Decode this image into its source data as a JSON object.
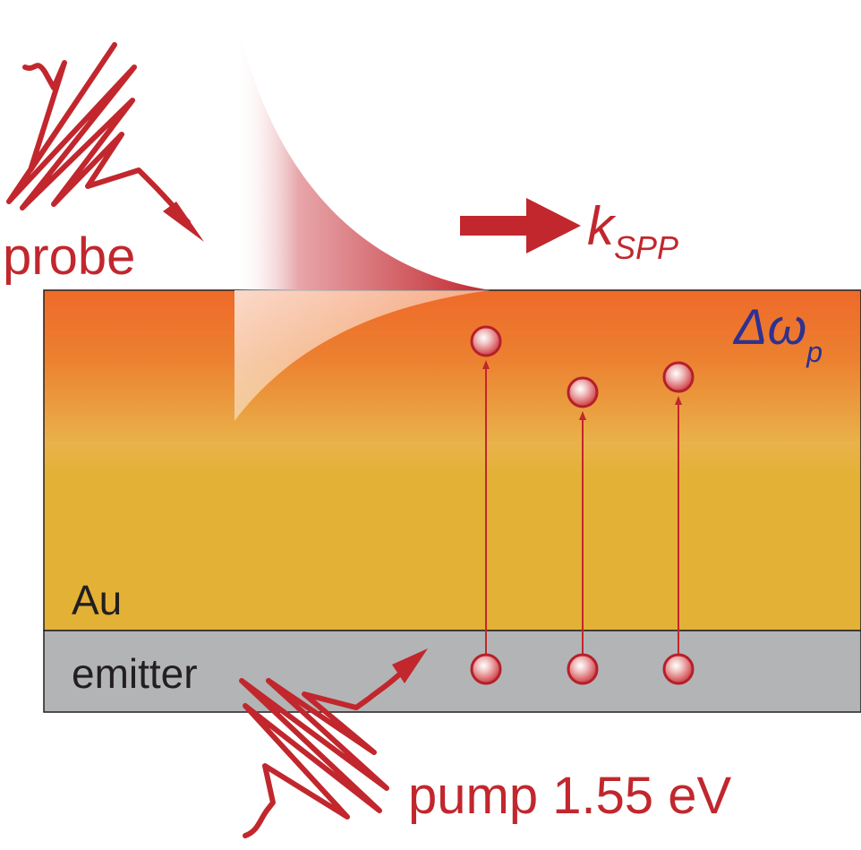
{
  "labels": {
    "probe": "probe",
    "k_main": "k",
    "k_sub": "SPP",
    "delta_main": "Δω",
    "delta_sub": "p",
    "au": "Au",
    "emitter": "emitter",
    "pump": "pump 1.55 eV"
  },
  "colors": {
    "accent_red": "#c1272d",
    "label_blue": "#2e3192",
    "au_top": "#ee6a2a",
    "au_bottom": "#e3b135",
    "emitter_gray": "#b3b4b6",
    "outline": "#231f20"
  },
  "electron_count": 3
}
